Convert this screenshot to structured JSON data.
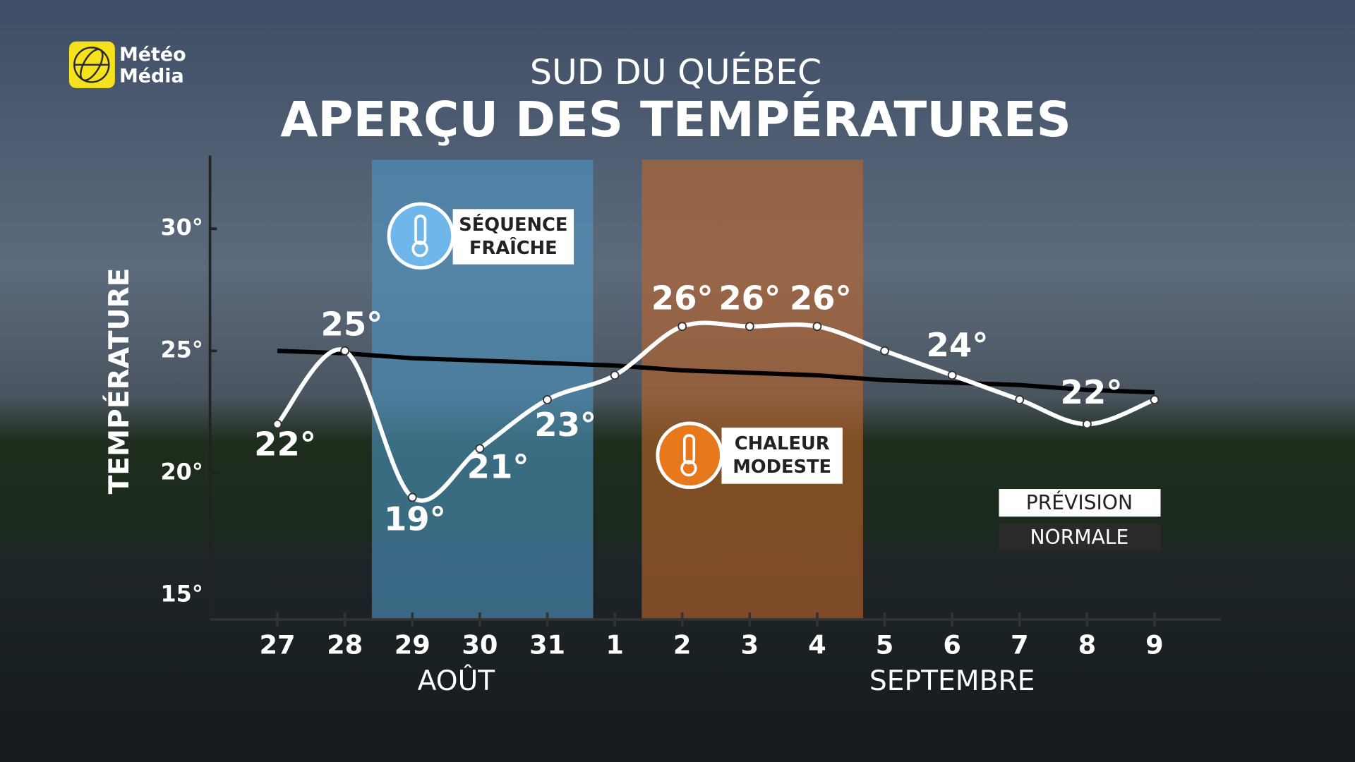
{
  "logo": [
    "Météo",
    "Média"
  ],
  "chart_data": {
    "type": "line",
    "title": "SUD DU QUÉBEC",
    "subtitle": "APERÇU DES TEMPÉRATURES",
    "y_label": "TEMPÉRATURE",
    "categories": [
      "27",
      "28",
      "29",
      "30",
      "31",
      "1",
      "2",
      "3",
      "4",
      "5",
      "6",
      "7",
      "8",
      "9"
    ],
    "months": [
      "AOÛT",
      "SEPTEMBRE"
    ],
    "series": [
      {
        "name": "PRÉVISION",
        "color": "#ffffff",
        "values": [
          22,
          25,
          19,
          21,
          23,
          24,
          26,
          26,
          26,
          25,
          24,
          23,
          22,
          23
        ],
        "value_labels": [
          "22°",
          "25°",
          "19°",
          "21°",
          "23°",
          null,
          "26°",
          "26°",
          "26°",
          null,
          "24°",
          null,
          "22°",
          null
        ]
      },
      {
        "name": "NORMALE",
        "color": "#000000",
        "values": [
          25.0,
          24.9,
          24.7,
          24.6,
          24.5,
          24.4,
          24.2,
          24.1,
          24.0,
          23.8,
          23.7,
          23.6,
          23.4,
          23.3
        ]
      }
    ],
    "annotations": [
      {
        "text": [
          "SÉQUENCE",
          "FRAÎCHE"
        ],
        "color": "#4f97c4"
      },
      {
        "text": [
          "CHALEUR",
          "MODESTE"
        ],
        "color": "#c0652a"
      }
    ],
    "ylim": [
      14,
      33
    ],
    "yticks": [
      {
        "value": 15,
        "label": "15°"
      },
      {
        "value": 20,
        "label": "20°"
      },
      {
        "value": 25,
        "label": "25°"
      },
      {
        "value": 30,
        "label": "30°"
      }
    ],
    "grid": false
  }
}
